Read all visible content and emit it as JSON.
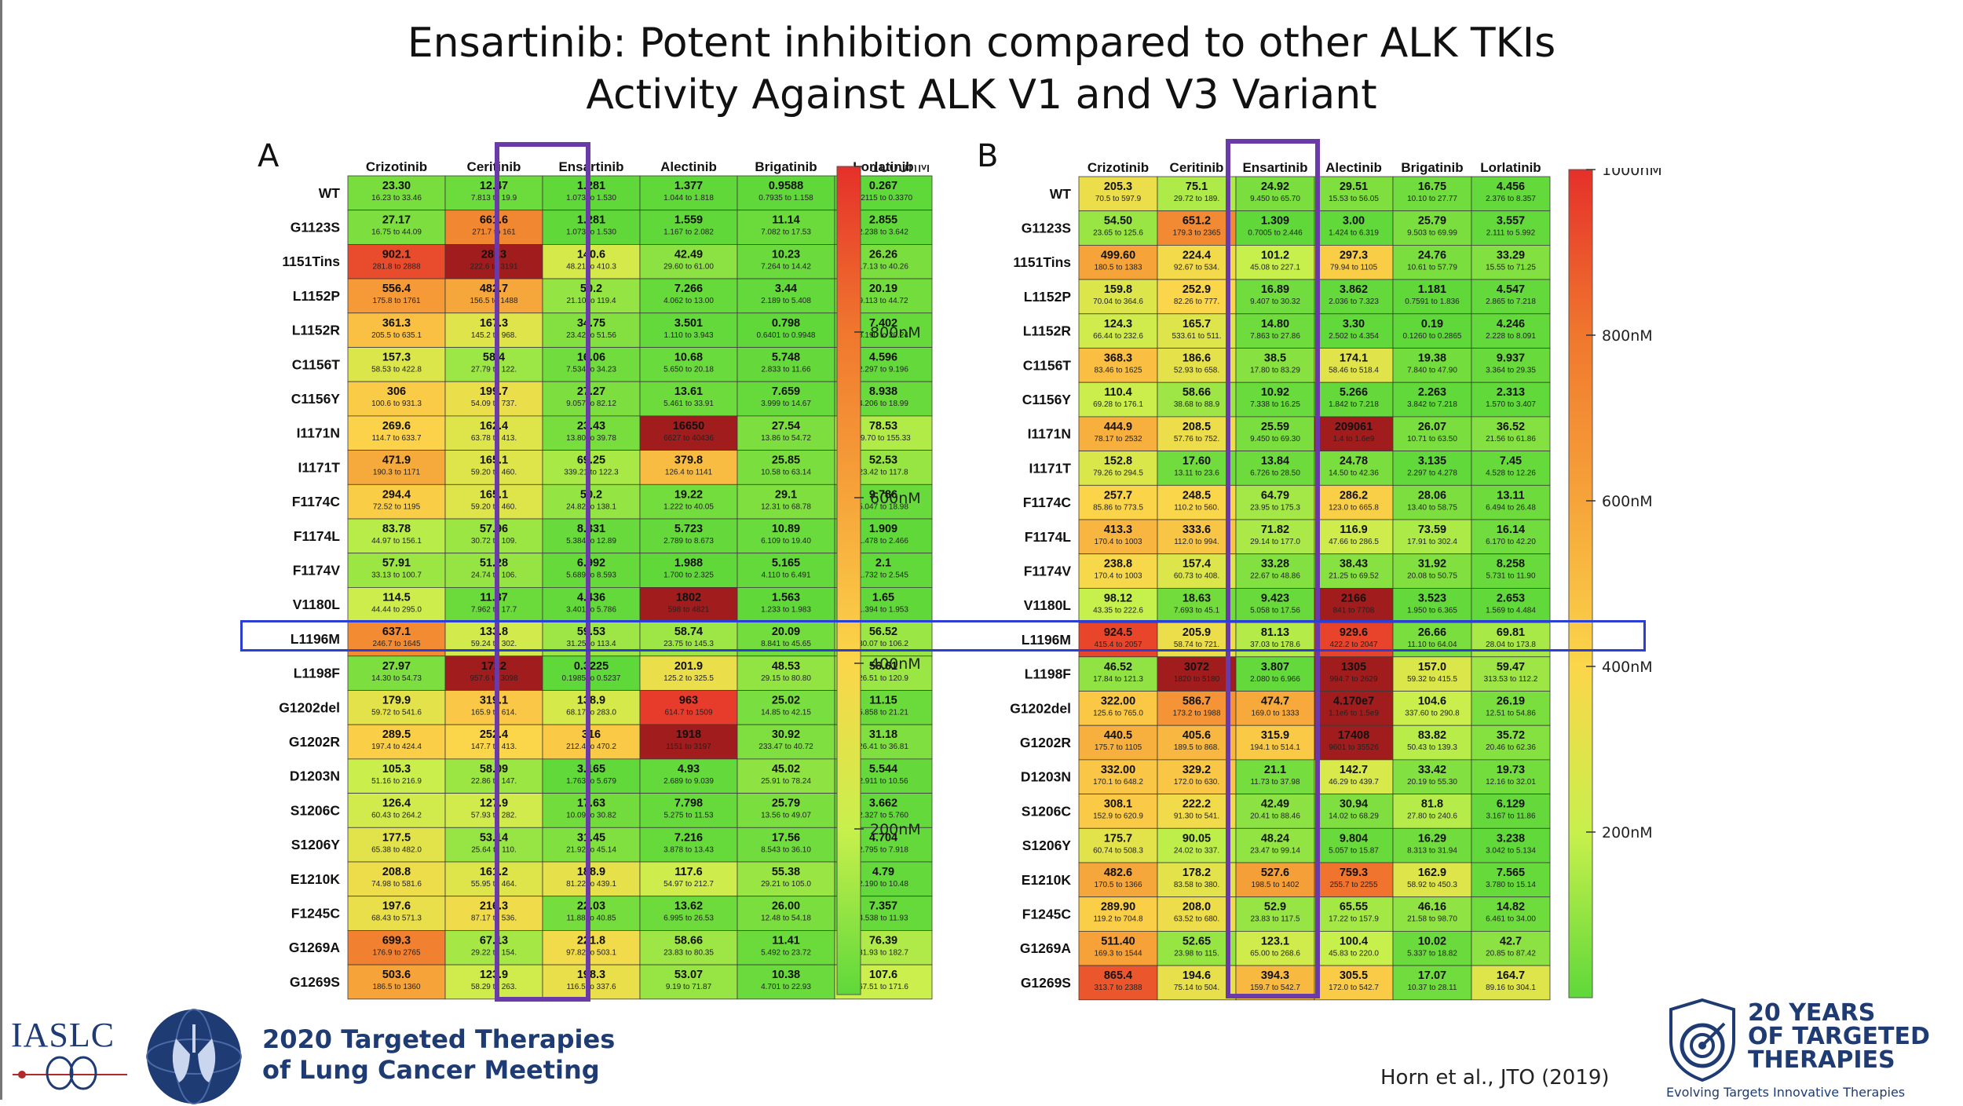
{
  "title": {
    "line1": "Ensartinib: Potent inhibition compared to other ALK TKIs",
    "line2": "Activity Against ALK V1 and V3 Variant"
  },
  "panels": [
    {
      "letter": "A"
    },
    {
      "letter": "B"
    }
  ],
  "colorbar": {
    "ticks": [
      "1000nM",
      "800nM",
      "600nM",
      "400nM",
      "200nM"
    ],
    "colors": [
      "#e5302a",
      "#f0772e",
      "#f6a43a",
      "#fbd64a",
      "#c8f04c",
      "#5fd83a"
    ]
  },
  "colors": {
    "title": "#111111",
    "highlight_row": "#2b3fd6",
    "highlight_col": "#6a3aa8",
    "brand_navy": "#1f3b73"
  },
  "footer": {
    "iaslc": "IASLC",
    "meeting_line1": "2020 Targeted Therapies",
    "meeting_line2": "of Lung Cancer Meeting",
    "citation": "Horn et al., JTO (2019)",
    "anniv_line1": "20 YEARS",
    "anniv_line2": "OF TARGETED",
    "anniv_line3": "THERAPIES",
    "anniv_tagline": "Evolving Targets  Innovative Therapies"
  },
  "chart_data": [
    {
      "type": "heatmap",
      "panel": "A",
      "variant": "ALK V1",
      "unit": "nM",
      "color_scale": [
        0,
        1000
      ],
      "highlight_column": "Ensartinib",
      "highlight_row": "L1196M",
      "columns": [
        "Crizotinib",
        "Ceritinib",
        "Ensartinib",
        "Alectinib",
        "Brigatinib",
        "Lorlatinib"
      ],
      "rows": [
        "WT",
        "G1123S",
        "1151Tins",
        "L1152P",
        "L1152R",
        "C1156T",
        "C1156Y",
        "I1171N",
        "I1171T",
        "F1174C",
        "F1174L",
        "F1174V",
        "V1180L",
        "L1196M",
        "L1198F",
        "G1202del",
        "G1202R",
        "D1203N",
        "S1206C",
        "S1206Y",
        "E1210K",
        "F1245C",
        "G1269A",
        "G1269S"
      ],
      "values": [
        [
          "23.30",
          "12.47",
          "1.281",
          "1.377",
          "0.9588",
          "0.267"
        ],
        [
          "27.17",
          "661.6",
          "1.281",
          "1.559",
          "11.14",
          "2.855"
        ],
        [
          "902.1",
          "2813",
          "140.6",
          "42.49",
          "10.23",
          "26.26"
        ],
        [
          "556.4",
          "482.7",
          "50.2",
          "7.266",
          "3.44",
          "20.19"
        ],
        [
          "361.3",
          "167.3",
          "34.75",
          "3.501",
          "0.798",
          "7.402"
        ],
        [
          "157.3",
          "58.4",
          "16.06",
          "10.68",
          "5.748",
          "4.596"
        ],
        [
          "306",
          "199.7",
          "27.27",
          "13.61",
          "7.659",
          "8.938"
        ],
        [
          "269.6",
          "162.4",
          "23.43",
          "16650",
          "27.54",
          "78.53"
        ],
        [
          "471.9",
          "165.1",
          "69.25",
          "379.8",
          "25.85",
          "52.53"
        ],
        [
          "294.4",
          "165.1",
          "50.2",
          "19.22",
          "29.1",
          "9.786"
        ],
        [
          "83.78",
          "57.96",
          "8.331",
          "5.723",
          "10.89",
          "1.909"
        ],
        [
          "57.91",
          "51.28",
          "6.992",
          "1.988",
          "5.165",
          "2.1"
        ],
        [
          "114.5",
          "11.87",
          "4.436",
          "1802",
          "1.563",
          "1.65"
        ],
        [
          "637.1",
          "133.8",
          "59.53",
          "58.74",
          "20.09",
          "56.52"
        ],
        [
          "27.97",
          "1722",
          "0.3225",
          "201.9",
          "48.53",
          "56.61"
        ],
        [
          "179.9",
          "319.1",
          "138.9",
          "963",
          "25.02",
          "11.15"
        ],
        [
          "289.5",
          "252.4",
          "316",
          "1918",
          "30.92",
          "31.18"
        ],
        [
          "105.3",
          "58.09",
          "3.165",
          "4.93",
          "45.02",
          "5.544"
        ],
        [
          "126.4",
          "127.9",
          "17.63",
          "7.798",
          "25.79",
          "3.662"
        ],
        [
          "177.5",
          "53.14",
          "31.45",
          "7.216",
          "17.56",
          "4.704"
        ],
        [
          "208.8",
          "161.2",
          "188.9",
          "117.6",
          "55.38",
          "4.79"
        ],
        [
          "197.6",
          "216.3",
          "22.03",
          "13.62",
          "26.00",
          "7.357"
        ],
        [
          "699.3",
          "67.13",
          "221.8",
          "58.66",
          "11.41",
          "76.39"
        ],
        [
          "503.6",
          "123.9",
          "198.3",
          "53.07",
          "10.38",
          "107.6"
        ]
      ],
      "ci": [
        [
          "16.23 to 33.46",
          "7.813 to 19.9",
          "1.073 to 1.530",
          "1.044 to 1.818",
          "0.7935 to 1.158",
          "0.2115 to 0.3370"
        ],
        [
          "16.75 to 44.09",
          "271.7 to 161",
          "1.073 to 1.530",
          "1.167 to 2.082",
          "7.082 to 17.53",
          "2.238 to 3.642"
        ],
        [
          "281.8 to 2888",
          "222.6 to 3191",
          "48.21 to 410.3",
          "29.60 to 61.00",
          "7.264 to 14.42",
          "17.13 to 40.26"
        ],
        [
          "175.8 to 1761",
          "156.5 to 1488",
          "21.10 to 119.4",
          "4.062 to 13.00",
          "2.189 to 5.408",
          "9.113 to 44.72"
        ],
        [
          "205.5 to 635.1",
          "145.2 to 968.",
          "23.42 to 51.56",
          "1.110 to 3.943",
          "0.6401 to 0.9948",
          "8.190 to 20.24"
        ],
        [
          "58.53 to 422.8",
          "27.79 to 122.",
          "7.534 to 34.23",
          "5.650 to 20.18",
          "2.833 to 11.66",
          "2.297 to 9.196"
        ],
        [
          "100.6 to 931.3",
          "54.09 to 737.",
          "9.057 to 82.12",
          "5.461 to 33.91",
          "3.999 to 14.67",
          "4.206 to 18.99"
        ],
        [
          "114.7 to 633.7",
          "63.78 to 413.",
          "13.80 to 39.78",
          "6627 to 40436",
          "13.86 to 54.72",
          "39.70 to 155.33"
        ],
        [
          "190.3 to 1171",
          "59.20 to 460.",
          "339.21 to 122.3",
          "126.4 to 1141",
          "10.58 to 63.14",
          "23.42 to 117.8"
        ],
        [
          "72.52 to 1195",
          "59.20 to 460.",
          "24.82 to 138.1",
          "1.222 to 40.05",
          "12.31 to 68.78",
          "5.047 to 18.98"
        ],
        [
          "44.97 to 156.1",
          "30.72 to 109.",
          "5.384 to 12.89",
          "2.789 to 8.673",
          "6.109 to 19.40",
          "1.478 to 2.466"
        ],
        [
          "33.13 to 100.7",
          "24.74 to 106.",
          "5.689 to 8.593",
          "1.700 to 2.325",
          "4.110 to 6.491",
          "1.732 to 2.545"
        ],
        [
          "44.44 to 295.0",
          "7.962 to 17.7",
          "3.401 to 5.786",
          "598 to 4821",
          "1.233 to 1.983",
          "1.394 to 1.953"
        ],
        [
          "246.7 to 1645",
          "59.24 to 302.",
          "31.25 to 113.4",
          "23.75 to 145.3",
          "8.841 to 45.65",
          "30.07 to 106.2"
        ],
        [
          "14.30 to 54.73",
          "957.6 to 3098",
          "0.1985 to 0.5237",
          "125.2 to 325.5",
          "29.15 to 80.80",
          "26.51 to 120.9"
        ],
        [
          "59.72 to 541.6",
          "165.9 to 614.",
          "68.17 to 283.0",
          "614.7 to 1509",
          "14.85 to 42.15",
          "5.858 to 21.21"
        ],
        [
          "197.4 to 424.4",
          "147.7 to 413.",
          "212.4 to 470.2",
          "1151 to 3197",
          "233.47 to 40.72",
          "26.41 to 36.81"
        ],
        [
          "51.16 to 216.9",
          "22.86 to 147.",
          "1.763 to 5.679",
          "2.689 to 9.039",
          "25.91 to 78.24",
          "2.911 to 10.56"
        ],
        [
          "60.43 to 264.2",
          "57.93 to 282.",
          "10.09 to 30.82",
          "5.275 to 11.53",
          "13.56 to 49.07",
          "2.327 to 5.760"
        ],
        [
          "65.38 to 482.0",
          "25.64 to 110.",
          "21.92 to 45.14",
          "3.878 to 13.43",
          "8.543 to 36.10",
          "2.795 to 7.918"
        ],
        [
          "74.98 to 581.6",
          "55.95 to 464.",
          "81.22 to 439.1",
          "54.97 to 212.7",
          "29.21 to 105.0",
          "2.190 to 10.48"
        ],
        [
          "68.43 to 571.3",
          "87.17 to 536.",
          "11.88 to 40.85",
          "6.995 to 26.53",
          "12.48 to 54.18",
          "4.538 to 11.93"
        ],
        [
          "176.9 to 2765",
          "29.22 to 154.",
          "97.82 to 503.1",
          "23.83 to 80.35",
          "5.492 to 23.72",
          "31.93 to 182.7"
        ],
        [
          "186.5 to 1360",
          "58.29 to 263.",
          "116.5 to 337.6",
          "9.19 to 71.87",
          "4.701 to 22.93",
          "67.51 to 171.6"
        ]
      ]
    },
    {
      "type": "heatmap",
      "panel": "B",
      "variant": "ALK V3",
      "unit": "nM",
      "color_scale": [
        0,
        1000
      ],
      "highlight_column": "Ensartinib",
      "highlight_row": "L1196M",
      "columns": [
        "Crizotinib",
        "Ceritinib",
        "Ensartinib",
        "Alectinib",
        "Brigatinib",
        "Lorlatinib"
      ],
      "rows": [
        "WT",
        "G1123S",
        "1151Tins",
        "L1152P",
        "L1152R",
        "C1156T",
        "C1156Y",
        "I1171N",
        "I1171T",
        "F1174C",
        "F1174L",
        "F1174V",
        "V1180L",
        "L1196M",
        "L1198F",
        "G1202del",
        "G1202R",
        "D1203N",
        "S1206C",
        "S1206Y",
        "E1210K",
        "F1245C",
        "G1269A",
        "G1269S"
      ],
      "values": [
        [
          "205.3",
          "75.1",
          "24.92",
          "29.51",
          "16.75",
          "4.456"
        ],
        [
          "54.50",
          "651.2",
          "1.309",
          "3.00",
          "25.79",
          "3.557"
        ],
        [
          "499.60",
          "224.4",
          "101.2",
          "297.3",
          "24.76",
          "33.29"
        ],
        [
          "159.8",
          "252.9",
          "16.89",
          "3.862",
          "1.181",
          "4.547"
        ],
        [
          "124.3",
          "165.7",
          "14.80",
          "3.30",
          "0.19",
          "4.246"
        ],
        [
          "368.3",
          "186.6",
          "38.5",
          "174.1",
          "19.38",
          "9.937"
        ],
        [
          "110.4",
          "58.66",
          "10.92",
          "5.266",
          "2.263",
          "2.313"
        ],
        [
          "444.9",
          "208.5",
          "25.59",
          "209061",
          "26.07",
          "36.52"
        ],
        [
          "152.8",
          "17.60",
          "13.84",
          "24.78",
          "3.135",
          "7.45"
        ],
        [
          "257.7",
          "248.5",
          "64.79",
          "286.2",
          "28.06",
          "13.11"
        ],
        [
          "413.3",
          "333.6",
          "71.82",
          "116.9",
          "73.59",
          "16.14"
        ],
        [
          "238.8",
          "157.4",
          "33.28",
          "38.43",
          "31.92",
          "8.258"
        ],
        [
          "98.12",
          "18.63",
          "9.423",
          "2166",
          "3.523",
          "2.653"
        ],
        [
          "924.5",
          "205.9",
          "81.13",
          "929.6",
          "26.66",
          "69.81"
        ],
        [
          "46.52",
          "3072",
          "3.807",
          "1305",
          "157.0",
          "59.47"
        ],
        [
          "322.00",
          "586.7",
          "474.7",
          "4.170e7",
          "104.6",
          "26.19"
        ],
        [
          "440.5",
          "405.6",
          "315.9",
          "17408",
          "83.82",
          "35.72"
        ],
        [
          "332.00",
          "329.2",
          "21.1",
          "142.7",
          "33.42",
          "19.73"
        ],
        [
          "308.1",
          "222.2",
          "42.49",
          "30.94",
          "81.8",
          "6.129"
        ],
        [
          "175.7",
          "90.05",
          "48.24",
          "9.804",
          "16.29",
          "3.238"
        ],
        [
          "482.6",
          "178.2",
          "527.6",
          "759.3",
          "162.9",
          "7.565"
        ],
        [
          "289.90",
          "208.0",
          "52.9",
          "65.55",
          "46.16",
          "14.82"
        ],
        [
          "511.40",
          "52.65",
          "123.1",
          "100.4",
          "10.02",
          "42.7"
        ],
        [
          "865.4",
          "194.6",
          "394.3",
          "305.5",
          "17.07",
          "164.7"
        ]
      ],
      "ci": [
        [
          "70.5 to 597.9",
          "29.72 to 189.",
          "9.450 to 65.70",
          "15.53 to 56.05",
          "10.10 to 27.77",
          "2.376 to 8.357"
        ],
        [
          "23.65 to 125.6",
          "179.3 to 2365",
          "0.7005 to 2.446",
          "1.424 to 6.319",
          "9.503 to 69.99",
          "2.111 to 5.992"
        ],
        [
          "180.5 to 1383",
          "92.67 to 534.",
          "45.08 to 227.1",
          "79.94 to 1105",
          "10.61 to 57.79",
          "15.55 to 71.25"
        ],
        [
          "70.04 to 364.6",
          "82.26 to 777.",
          "9.407 to 30.32",
          "2.036 to 7.323",
          "0.7591 to 1.836",
          "2.865 to 7.218"
        ],
        [
          "66.44 to 232.6",
          "533.61 to 511.",
          "7.863 to 27.86",
          "2.502 to 4.354",
          "0.1260 to 0.2865",
          "2.228 to 8.091"
        ],
        [
          "83.46 to 1625",
          "52.93 to 658.",
          "17.80 to 83.29",
          "58.46 to 518.4",
          "7.840 to 47.90",
          "3.364 to 29.35"
        ],
        [
          "69.28 to 176.1",
          "38.68 to 88.9",
          "7.338 to 16.25",
          "1.842 to 7.218",
          "3.842 to 7.218",
          "1.570 to 3.407"
        ],
        [
          "78.17 to 2532",
          "57.76 to 752.",
          "9.450 to 69.30",
          "1.4 to 1.6e9",
          "10.71 to 63.50",
          "21.56 to 61.86"
        ],
        [
          "79.26 to 294.5",
          "13.11 to 23.6",
          "6.726 to 28.50",
          "14.50 to 42.36",
          "2.297 to 4.278",
          "4.528 to 12.26"
        ],
        [
          "85.86 to 773.5",
          "110.2 to 560.",
          "23.95 to 175.3",
          "123.0 to 665.8",
          "13.40 to 58.75",
          "6.494 to 26.48"
        ],
        [
          "170.4 to 1003",
          "112.0 to 994.",
          "29.14 to 177.0",
          "47.66 to 286.5",
          "17.91 to 302.4",
          "6.170 to 42.20"
        ],
        [
          "170.4 to 1003",
          "60.73 to 408.",
          "22.67 to 48.86",
          "21.25 to 69.52",
          "20.08 to 50.75",
          "5.731 to 11.90"
        ],
        [
          "43.35 to 222.6",
          "7.693 to 45.1",
          "5.058 to 17.56",
          "841 to 7708",
          "1.950 to 6.365",
          "1.569 to 4.484"
        ],
        [
          "415.4 to 2057",
          "58.74 to 721.",
          "37.03 to 178.6",
          "422.2 to 2047",
          "11.10 to 64.04",
          "28.04 to 173.8"
        ],
        [
          "17.84 to 121.3",
          "1820 to 5180",
          "2.080 to 6.966",
          "994.7 to 2629",
          "59.32 to 415.5",
          "313.53 to 112.2"
        ],
        [
          "125.6 to 765.0",
          "173.2 to 1988",
          "169.0 to 1333",
          "1.1e6 to 1.5e9",
          "337.60 to 290.8",
          "12.51 to 54.86"
        ],
        [
          "175.7 to 1105",
          "189.5 to 868.",
          "194.1 to 514.1",
          "9601 to 35526",
          "50.43 to 139.3",
          "20.46 to 62.36"
        ],
        [
          "170.1 to 648.2",
          "172.0 to 630.",
          "11.73 to 37.98",
          "46.29 to 439.7",
          "20.19 to 55.30",
          "12.16 to 32.01"
        ],
        [
          "152.9 to 620.9",
          "91.30 to 541.",
          "20.41 to 88.46",
          "14.02 to 68.29",
          "27.80 to 240.6",
          "3.167 to 11.86"
        ],
        [
          "60.74 to 508.3",
          "24.02 to 337.",
          "23.47 to 99.14",
          "5.057 to 15.87",
          "8.313 to 31.94",
          "3.042 to 5.134"
        ],
        [
          "170.5 to 1366",
          "83.58 to 380.",
          "198.5 to 1402",
          "255.7 to 2255",
          "58.92 to 450.3",
          "3.780 to 15.14"
        ],
        [
          "119.2 to 704.8",
          "63.52 to 680.",
          "23.83 to 117.5",
          "17.22 to 157.9",
          "21.58 to 98.70",
          "6.461 to 34.00"
        ],
        [
          "169.3 to 1544",
          "23.98 to 115.",
          "65.00 to 268.6",
          "45.83 to 220.0",
          "5.337 to 18.82",
          "20.85 to 87.42"
        ],
        [
          "313.7 to 2388",
          "75.14 to 504.",
          "159.7 to 542.7",
          "172.0 to 542.7",
          "10.37 to 28.11",
          "89.16 to 304.1"
        ]
      ]
    }
  ]
}
